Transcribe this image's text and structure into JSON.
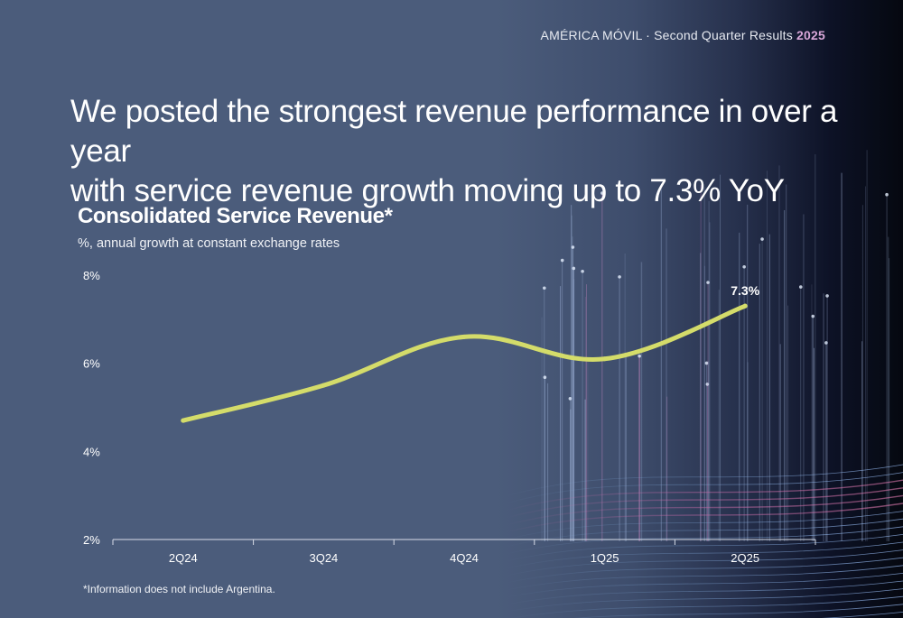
{
  "header": {
    "company": "AMÉRICA MÓVIL · Second Quarter Results ",
    "year": "2025"
  },
  "headline": {
    "line1": "We posted the strongest revenue performance in over a year",
    "line2": "with service revenue growth moving up to 7.3% YoY"
  },
  "chart_data": {
    "type": "line",
    "title": "Consolidated Service Revenue*",
    "subtitle": "%, annual growth at constant exchange rates",
    "categories": [
      "2Q24",
      "3Q24",
      "4Q24",
      "1Q25",
      "2Q25"
    ],
    "series": [
      {
        "values": [
          4.7,
          5.5,
          6.6,
          6.1,
          7.3
        ]
      }
    ],
    "ylim": [
      2,
      8
    ],
    "yticks": [
      "2%",
      "4%",
      "6%",
      "8%"
    ],
    "data_labels": [
      {
        "index": 4,
        "text": "7.3%"
      }
    ],
    "line_color": "#d4dc6a",
    "grid": false,
    "legend": "none"
  },
  "footnote": "*Information does not include Argentina."
}
